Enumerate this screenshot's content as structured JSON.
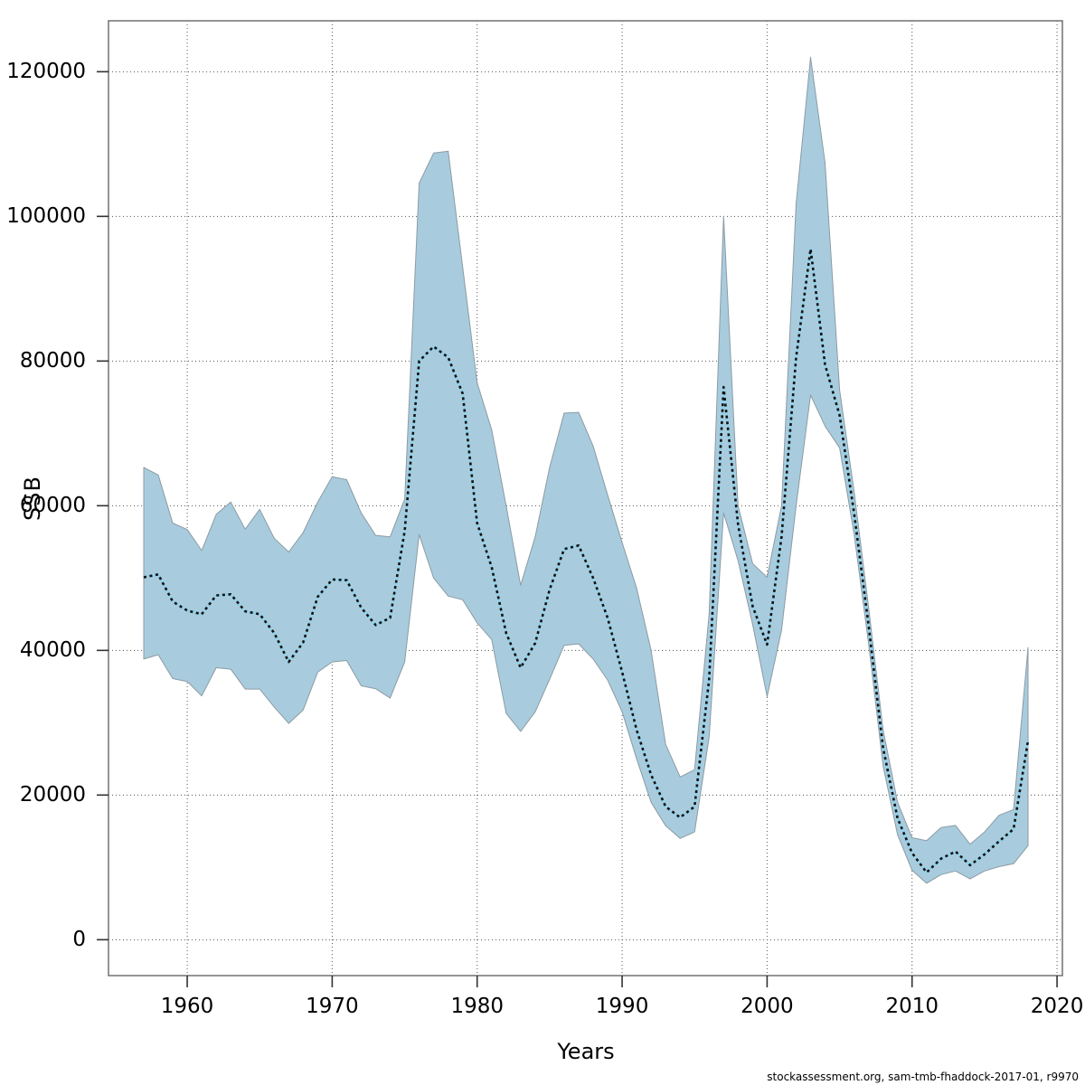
{
  "figure": {
    "xlabel": "Years",
    "ylabel": "SSB",
    "caption": "stockassessment.org, sam-tmb-fhaddock-2017-01, r9970"
  },
  "chart_data": {
    "type": "area",
    "title": "",
    "xlabel": "Years",
    "ylabel": "SSB",
    "grid": true,
    "legend_position": "none",
    "xlim": [
      1954.57,
      2020.37
    ],
    "ylim": [
      -4960,
      127040
    ],
    "x_ticks": [
      1960,
      1970,
      1980,
      1990,
      2000,
      2010,
      2020
    ],
    "y_ticks": [
      0,
      20000,
      40000,
      60000,
      80000,
      100000,
      120000
    ],
    "x": [
      1957,
      1958,
      1959,
      1960,
      1961,
      1962,
      1963,
      1964,
      1965,
      1966,
      1967,
      1968,
      1969,
      1970,
      1971,
      1972,
      1973,
      1974,
      1975,
      1976,
      1977,
      1978,
      1979,
      1980,
      1981,
      1982,
      1983,
      1984,
      1985,
      1986,
      1987,
      1988,
      1989,
      1990,
      1991,
      1992,
      1993,
      1994,
      1995,
      1996,
      1997,
      1998,
      1999,
      2000,
      2001,
      2002,
      2003,
      2004,
      2005,
      2006,
      2007,
      2008,
      2009,
      2010,
      2011,
      2012,
      2013,
      2014,
      2015,
      2016,
      2017,
      2018
    ],
    "series": [
      {
        "name": "SSB estimate",
        "style": "dotted-line",
        "values": [
          50100,
          50500,
          46750,
          45500,
          45000,
          47600,
          47750,
          45400,
          45000,
          42400,
          38400,
          41100,
          47400,
          49800,
          49700,
          45900,
          43500,
          44500,
          56500,
          80000,
          82000,
          80500,
          75500,
          57600,
          51500,
          42400,
          37600,
          41000,
          48400,
          54000,
          54500,
          50000,
          44500,
          37000,
          29000,
          22800,
          18400,
          16900,
          18400,
          36000,
          76400,
          57400,
          46100,
          40800,
          55700,
          80500,
          95500,
          79500,
          72500,
          59000,
          43500,
          26500,
          16800,
          12000,
          9300,
          11200,
          12200,
          10300,
          11800,
          13600,
          15300,
          27500
        ]
      },
      {
        "name": "confidence band lower",
        "style": "band-low",
        "values": [
          38800,
          39400,
          36100,
          35700,
          33700,
          37600,
          37400,
          34650,
          34650,
          32150,
          29900,
          31750,
          37000,
          38400,
          38600,
          35100,
          34700,
          33400,
          38400,
          56000,
          50000,
          47500,
          47000,
          43800,
          41500,
          31300,
          28800,
          31500,
          36000,
          40700,
          40900,
          38800,
          35900,
          31500,
          25000,
          19000,
          15750,
          14000,
          14900,
          28000,
          59000,
          52400,
          43600,
          33600,
          42800,
          60000,
          75300,
          71000,
          68000,
          56100,
          41000,
          24000,
          14500,
          9600,
          7800,
          9000,
          9500,
          8400,
          9500,
          10100,
          10500,
          13000
        ]
      },
      {
        "name": "confidence band upper",
        "style": "band-high",
        "values": [
          65300,
          64250,
          57600,
          56700,
          53800,
          58800,
          60500,
          56750,
          59500,
          55500,
          53600,
          56300,
          60500,
          64000,
          63600,
          59000,
          55900,
          55700,
          60900,
          104600,
          108750,
          109000,
          93000,
          77000,
          70500,
          60000,
          49000,
          55700,
          65300,
          72800,
          72900,
          68250,
          61500,
          54900,
          48600,
          40000,
          27000,
          22500,
          23500,
          45000,
          100000,
          60000,
          52000,
          50100,
          60000,
          101750,
          122000,
          107400,
          76000,
          62000,
          46000,
          29000,
          19000,
          14100,
          13700,
          15500,
          15800,
          13200,
          14900,
          17200,
          18000,
          40400
        ]
      }
    ],
    "colors": {
      "band_fill": "#a8ccdd",
      "band_edge": "#8c9ba4",
      "line_under": "#8fd0ea",
      "line_dash": "#111111",
      "grid": "#555555",
      "axis_box": "#7a7a7a",
      "tick": "#333333"
    }
  }
}
